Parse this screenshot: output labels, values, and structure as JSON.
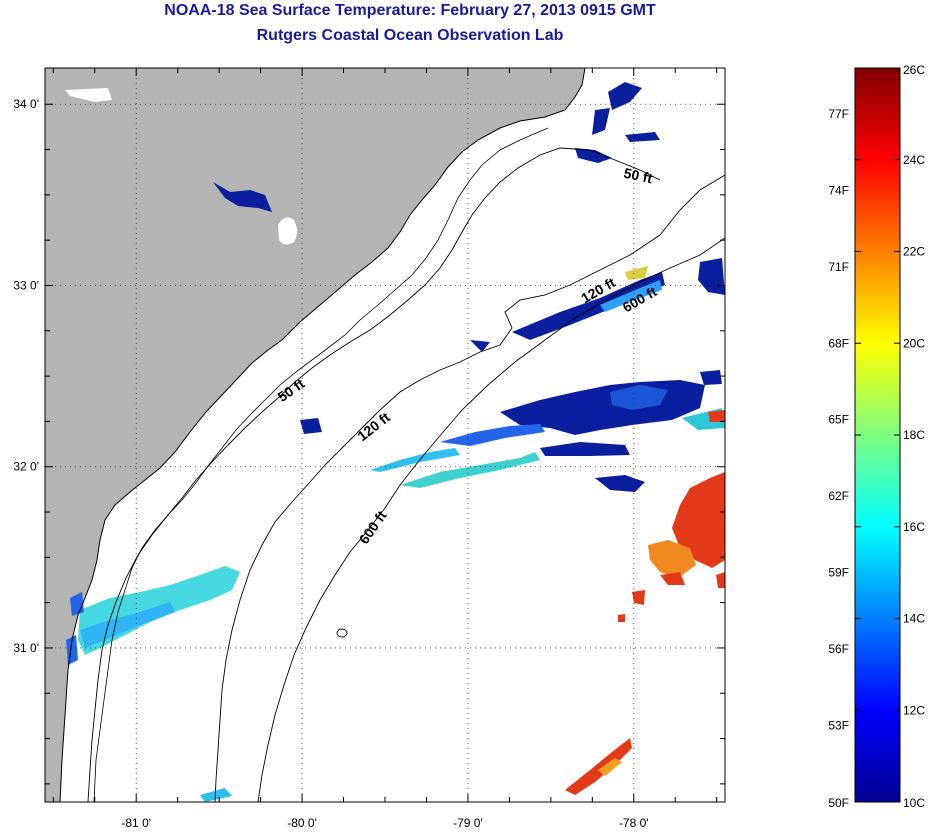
{
  "title": "NOAA-18 Sea Surface Temperature:  February 27, 2013 0915 GMT",
  "subtitle": "Rutgers Coastal Ocean Observation Lab",
  "map": {
    "lon_range": [
      -81.55,
      -77.45
    ],
    "lat_range": [
      30.15,
      34.2
    ],
    "lon_ticks": [
      {
        "value": -81,
        "label": "-81 0'"
      },
      {
        "value": -80,
        "label": "-80 0'"
      },
      {
        "value": -79,
        "label": "-79 0'"
      },
      {
        "value": -78,
        "label": "-78 0'"
      }
    ],
    "lat_ticks": [
      {
        "value": 34,
        "label": "34 0'"
      },
      {
        "value": 33,
        "label": "33 0'"
      },
      {
        "value": 32,
        "label": "32 0'"
      },
      {
        "value": 31,
        "label": "31 0'"
      }
    ],
    "land_color": "#b4b4b4",
    "grid": "dotted",
    "contours": [
      {
        "label": "50 ft",
        "positions": [
          [
            -77.98,
            33.58
          ],
          [
            -80.05,
            32.4
          ]
        ]
      },
      {
        "label": "120 ft",
        "positions": [
          [
            -78.2,
            32.95
          ],
          [
            -79.55,
            32.2
          ]
        ]
      },
      {
        "label": "600 ft",
        "positions": [
          [
            -77.95,
            32.9
          ],
          [
            -79.55,
            31.65
          ]
        ]
      }
    ]
  },
  "colorbar": {
    "min_c": 10,
    "max_c": 26,
    "celsius_labels": [
      "10C",
      "12C",
      "14C",
      "16C",
      "18C",
      "20C",
      "22C",
      "24C",
      "26C"
    ],
    "fahrenheit_labels": [
      "50F",
      "53F",
      "56F",
      "59F",
      "62F",
      "65F",
      "68F",
      "71F",
      "74F",
      "77F"
    ],
    "fahrenheit_values": [
      50,
      53,
      56,
      59,
      62,
      65,
      68,
      71,
      74,
      77
    ],
    "colormap": "jet"
  }
}
